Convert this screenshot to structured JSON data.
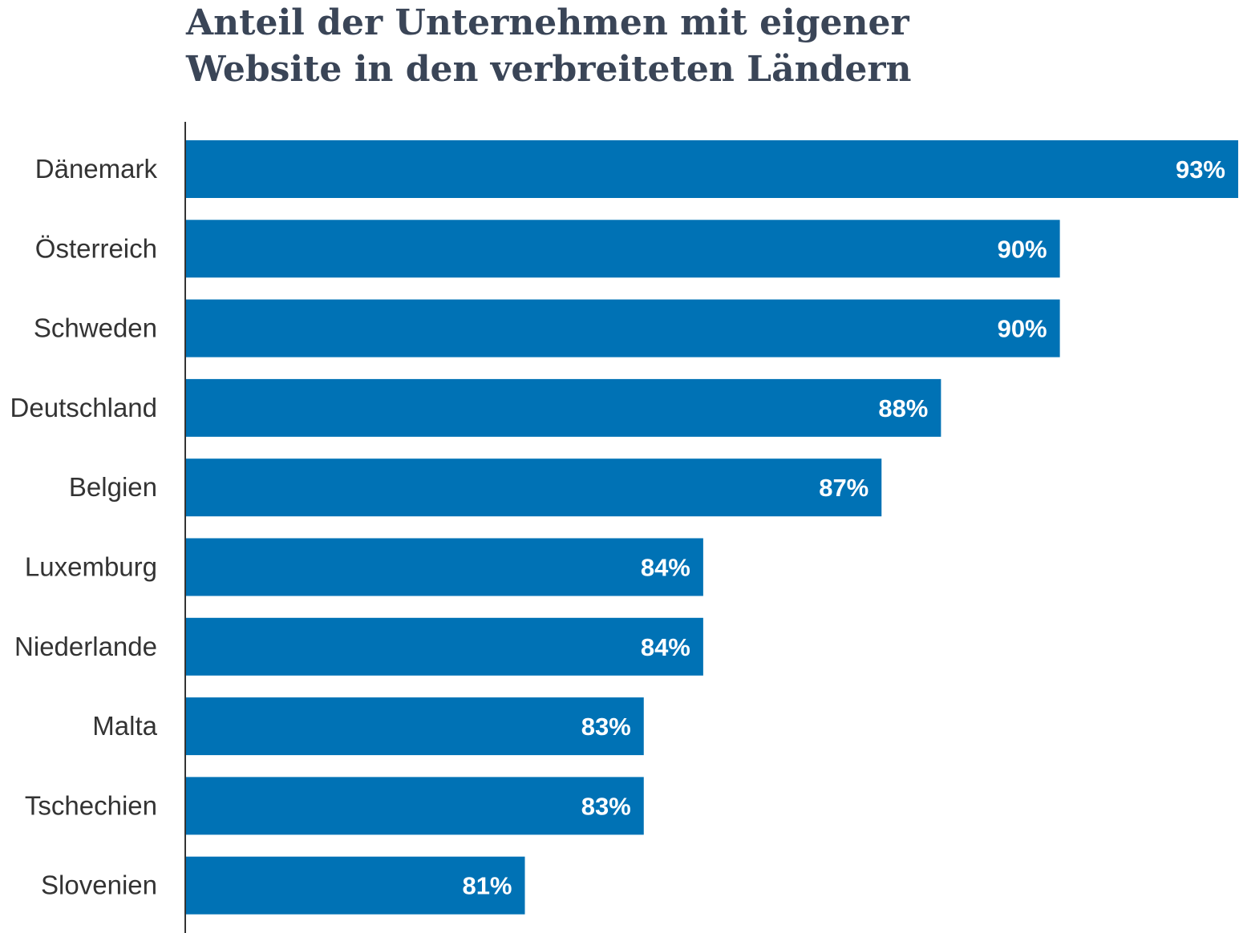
{
  "chart_data": {
    "type": "bar",
    "orientation": "horizontal",
    "title_lines": [
      "Anteil der Unternehmen mit eigener",
      "Website in den verbreiteten Ländern"
    ],
    "categories": [
      "Dänemark",
      "Österreich",
      "Schweden",
      "Deutschland",
      "Belgien",
      "Luxemburg",
      "Niederlande",
      "Malta",
      "Tschechien",
      "Slovenien"
    ],
    "values": [
      93,
      90,
      90,
      88,
      87,
      84,
      84,
      83,
      83,
      81
    ],
    "value_labels": [
      "93%",
      "90%",
      "90%",
      "88%",
      "87%",
      "84%",
      "84%",
      "83%",
      "83%",
      "81%"
    ],
    "xlim": [
      75.3,
      93
    ],
    "xlabel": "",
    "ylabel": "",
    "grid": false,
    "bar_color": "#0072b5",
    "label_color": "#ffffff",
    "axis_color": "#333333"
  }
}
